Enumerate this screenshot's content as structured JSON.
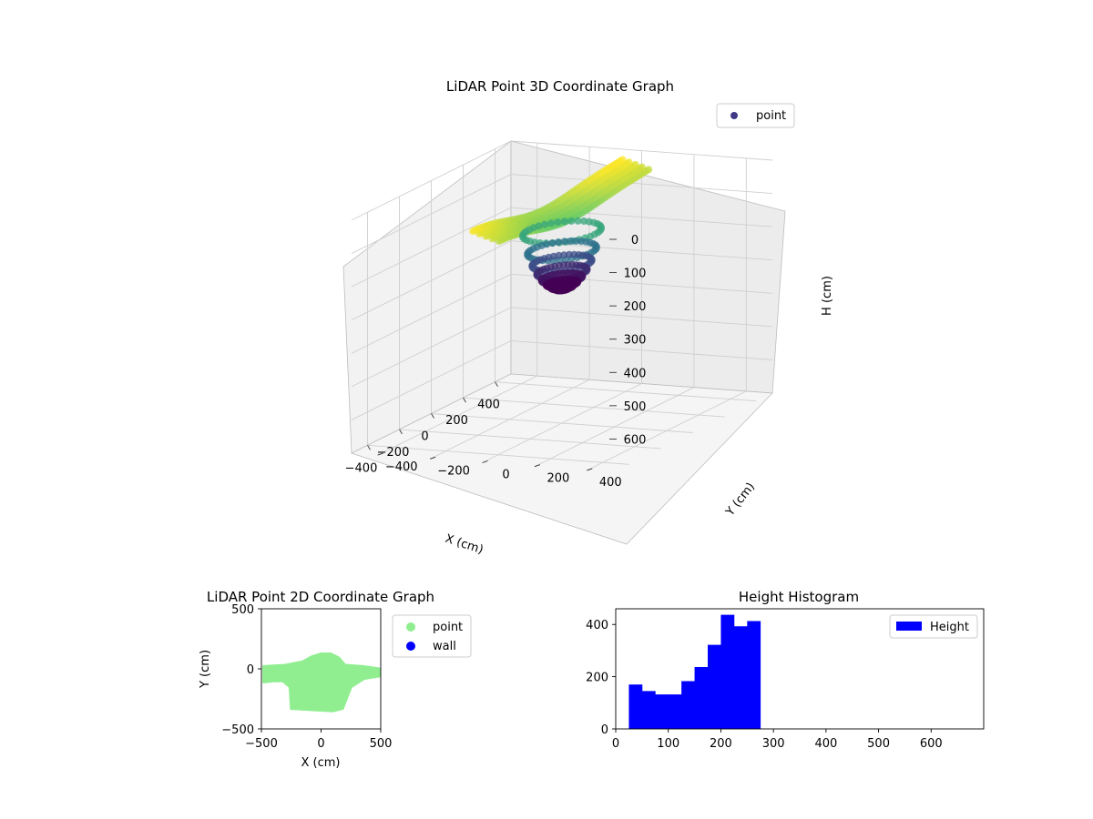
{
  "chart_data": [
    {
      "type": "scatter",
      "projection": "3d",
      "title": "LiDAR Point 3D Coordinate Graph",
      "xlabel": "X (cm)",
      "ylabel": "Y (cm)",
      "zlabel": "H (cm)",
      "xlim": [
        -500,
        500
      ],
      "ylim": [
        -500,
        500
      ],
      "zlim": [
        0,
        700
      ],
      "z_inverted": true,
      "xticks": [
        "−400",
        "−200",
        "0",
        "200",
        "400"
      ],
      "yticks": [
        "−400",
        "−200",
        "0",
        "200",
        "400"
      ],
      "zticks": [
        "0",
        "100",
        "200",
        "300",
        "400",
        "500",
        "600"
      ],
      "colormap": "viridis",
      "legend": {
        "labels": [
          "point"
        ],
        "position": "top-right"
      },
      "series": [
        {
          "name": "point",
          "shape": "dome over a low twisted ridge",
          "x_range": [
            -440,
            450
          ],
          "y_range": [
            -150,
            130
          ],
          "h_range": [
            20,
            280
          ]
        }
      ]
    },
    {
      "type": "scatter",
      "title": "LiDAR Point 2D Coordinate Graph",
      "xlabel": "X (cm)",
      "ylabel": "Y (cm)",
      "xlim": [
        -500,
        500
      ],
      "ylim": [
        -500,
        500
      ],
      "xticks": [
        "−500",
        "0",
        "500"
      ],
      "yticks": [
        "−500",
        "0",
        "500"
      ],
      "legend": {
        "labels": [
          "point",
          "wall"
        ],
        "position": "outside-right"
      },
      "series": [
        {
          "name": "point",
          "color": "#90ee90",
          "outline": [
            [
              -480,
              20
            ],
            [
              -300,
              30
            ],
            [
              -150,
              60
            ],
            [
              -80,
              100
            ],
            [
              0,
              125
            ],
            [
              80,
              125
            ],
            [
              150,
              90
            ],
            [
              200,
              30
            ],
            [
              350,
              20
            ],
            [
              490,
              0
            ],
            [
              490,
              -60
            ],
            [
              360,
              -80
            ],
            [
              250,
              -150
            ],
            [
              180,
              -330
            ],
            [
              100,
              -350
            ],
            [
              0,
              -345
            ],
            [
              -250,
              -330
            ],
            [
              -260,
              -150
            ],
            [
              -320,
              -100
            ],
            [
              -400,
              -100
            ],
            [
              -480,
              -110
            ]
          ]
        },
        {
          "name": "wall",
          "color": "#0000ff",
          "points": []
        }
      ]
    },
    {
      "type": "bar",
      "subtype": "histogram",
      "title": "Height Histogram",
      "xlim": [
        0,
        700
      ],
      "ylim": [
        0,
        460
      ],
      "xticks": [
        0,
        100,
        200,
        300,
        400,
        500,
        600
      ],
      "yticks": [
        0,
        200,
        400
      ],
      "legend": {
        "labels": [
          "Height"
        ],
        "position": "top-right"
      },
      "color": "#0000ff",
      "bin_edges": [
        25,
        50,
        75,
        100,
        125,
        150,
        175,
        200,
        225,
        250,
        275
      ],
      "series": [
        {
          "name": "Height",
          "values": [
            170,
            145,
            132,
            132,
            183,
            237,
            322,
            437,
            393,
            413
          ]
        }
      ]
    }
  ]
}
